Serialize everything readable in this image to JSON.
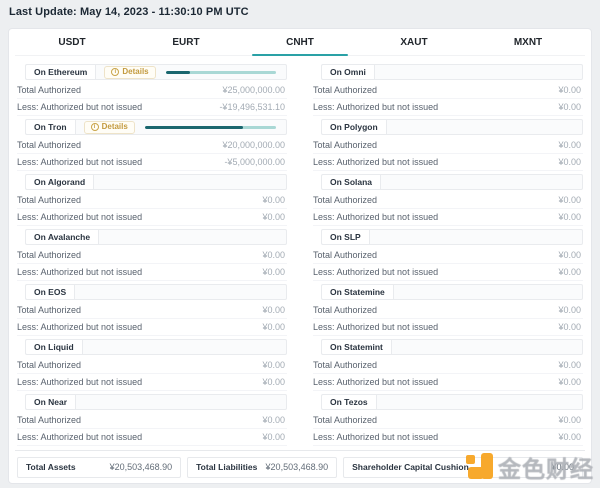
{
  "page": {
    "last_update": "Last Update: May 14, 2023 - 11:30:10 PM UTC"
  },
  "tabs": [
    {
      "label": "USDT",
      "active": false
    },
    {
      "label": "EURT",
      "active": false
    },
    {
      "label": "CNHT",
      "active": true
    },
    {
      "label": "XAUT",
      "active": false
    },
    {
      "label": "MXNT",
      "active": false
    }
  ],
  "labels": {
    "total_authorized": "Total Authorized",
    "less_not_issued": "Less: Authorized but not issued",
    "details": "Details",
    "info_glyph": "i"
  },
  "panels": {
    "left": [
      {
        "chain": "On Ethereum",
        "has_details": true,
        "progress_pct": 22,
        "total_authorized": "¥25,000,000.00",
        "less_not_issued": "-¥19,496,531.10"
      },
      {
        "chain": "On Tron",
        "has_details": true,
        "progress_pct": 75,
        "total_authorized": "¥20,000,000.00",
        "less_not_issued": "-¥5,000,000.00"
      },
      {
        "chain": "On Algorand",
        "has_details": false,
        "total_authorized": "¥0.00",
        "less_not_issued": "¥0.00"
      },
      {
        "chain": "On Avalanche",
        "has_details": false,
        "total_authorized": "¥0.00",
        "less_not_issued": "¥0.00"
      },
      {
        "chain": "On EOS",
        "has_details": false,
        "total_authorized": "¥0.00",
        "less_not_issued": "¥0.00"
      },
      {
        "chain": "On Liquid",
        "has_details": false,
        "total_authorized": "¥0.00",
        "less_not_issued": "¥0.00"
      },
      {
        "chain": "On Near",
        "has_details": false,
        "total_authorized": "¥0.00",
        "less_not_issued": "¥0.00"
      }
    ],
    "right": [
      {
        "chain": "On Omni",
        "has_details": false,
        "total_authorized": "¥0.00",
        "less_not_issued": "¥0.00"
      },
      {
        "chain": "On Polygon",
        "has_details": false,
        "total_authorized": "¥0.00",
        "less_not_issued": "¥0.00"
      },
      {
        "chain": "On Solana",
        "has_details": false,
        "total_authorized": "¥0.00",
        "less_not_issued": "¥0.00"
      },
      {
        "chain": "On SLP",
        "has_details": false,
        "total_authorized": "¥0.00",
        "less_not_issued": "¥0.00"
      },
      {
        "chain": "On Statemine",
        "has_details": false,
        "total_authorized": "¥0.00",
        "less_not_issued": "¥0.00"
      },
      {
        "chain": "On Statemint",
        "has_details": false,
        "total_authorized": "¥0.00",
        "less_not_issued": "¥0.00"
      },
      {
        "chain": "On Tezos",
        "has_details": false,
        "total_authorized": "¥0.00",
        "less_not_issued": "¥0.00"
      }
    ]
  },
  "footer": {
    "items": [
      {
        "label": "Total Assets",
        "value": "¥20,503,468.90"
      },
      {
        "label": "Total Liabilities",
        "value": "¥20,503,468.90"
      },
      {
        "label": "Shareholder Capital Cushion",
        "value": "¥0.00"
      }
    ]
  },
  "watermark": {
    "text": "金色财经"
  },
  "colors": {
    "accent_teal": "#2aa1a6",
    "progress_dark": "#1a666e",
    "progress_light": "#a9d8d5",
    "details_amber": "#c39a3e",
    "page_bg": "#edeff1"
  }
}
